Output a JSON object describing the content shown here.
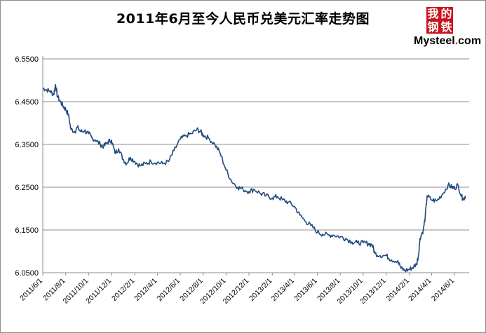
{
  "chart_data": {
    "type": "line",
    "title": "2011年6月至今人民币兑美元汇率走势图",
    "xlabel": "",
    "ylabel": "",
    "ylim": [
      6.05,
      6.55
    ],
    "yticks": [
      "6.5500",
      "6.4500",
      "6.3500",
      "6.2500",
      "6.1500",
      "6.0500"
    ],
    "xticks": [
      "2011/6/1",
      "2011/8/1",
      "2011/10/1",
      "2011/12/1",
      "2012/2/1",
      "2012/4/1",
      "2012/6/1",
      "2012/8/1",
      "2012/10/1",
      "2012/12/1",
      "2013/2/1",
      "2013/4/1",
      "2013/6/1",
      "2013/8/1",
      "2013/10/1",
      "2013/12/1",
      "2014/2/1",
      "2014/4/1",
      "2014/6/1"
    ],
    "grid": "horizontal",
    "line_color": "#1f497d",
    "series": [
      {
        "values": [
          [
            "2011/6/1",
            6.482
          ],
          [
            "2011/6/10",
            6.478
          ],
          [
            "2011/6/20",
            6.475
          ],
          [
            "2011/6/30",
            6.466
          ],
          [
            "2011/7/5",
            6.49
          ],
          [
            "2011/7/10",
            6.462
          ],
          [
            "2011/7/18",
            6.45
          ],
          [
            "2011/7/25",
            6.44
          ],
          [
            "2011/8/1",
            6.432
          ],
          [
            "2011/8/8",
            6.42
          ],
          [
            "2011/8/15",
            6.385
          ],
          [
            "2011/8/25",
            6.38
          ],
          [
            "2011/9/1",
            6.39
          ],
          [
            "2011/9/10",
            6.38
          ],
          [
            "2011/9/20",
            6.382
          ],
          [
            "2011/10/1",
            6.375
          ],
          [
            "2011/10/10",
            6.365
          ],
          [
            "2011/10/20",
            6.36
          ],
          [
            "2011/11/1",
            6.35
          ],
          [
            "2011/11/10",
            6.345
          ],
          [
            "2011/11/20",
            6.355
          ],
          [
            "2011/12/1",
            6.36
          ],
          [
            "2011/12/10",
            6.33
          ],
          [
            "2011/12/20",
            6.34
          ],
          [
            "2012/1/1",
            6.315
          ],
          [
            "2012/1/10",
            6.305
          ],
          [
            "2012/1/20",
            6.32
          ],
          [
            "2012/2/1",
            6.31
          ],
          [
            "2012/2/15",
            6.3
          ],
          [
            "2012/3/1",
            6.305
          ],
          [
            "2012/3/15",
            6.31
          ],
          [
            "2012/4/1",
            6.308
          ],
          [
            "2012/4/15",
            6.305
          ],
          [
            "2012/5/1",
            6.31
          ],
          [
            "2012/5/15",
            6.335
          ],
          [
            "2012/6/1",
            6.362
          ],
          [
            "2012/6/15",
            6.37
          ],
          [
            "2012/7/1",
            6.375
          ],
          [
            "2012/7/15",
            6.385
          ],
          [
            "2012/7/25",
            6.38
          ],
          [
            "2012/8/1",
            6.372
          ],
          [
            "2012/8/15",
            6.365
          ],
          [
            "2012/9/1",
            6.35
          ],
          [
            "2012/9/15",
            6.33
          ],
          [
            "2012/10/1",
            6.29
          ],
          [
            "2012/10/15",
            6.265
          ],
          [
            "2012/11/1",
            6.25
          ],
          [
            "2012/11/15",
            6.245
          ],
          [
            "2012/12/1",
            6.24
          ],
          [
            "2012/12/15",
            6.245
          ],
          [
            "2013/1/1",
            6.235
          ],
          [
            "2013/1/15",
            6.23
          ],
          [
            "2013/2/1",
            6.225
          ],
          [
            "2013/2/15",
            6.228
          ],
          [
            "2013/3/1",
            6.22
          ],
          [
            "2013/3/15",
            6.215
          ],
          [
            "2013/4/1",
            6.205
          ],
          [
            "2013/4/15",
            6.185
          ],
          [
            "2013/5/1",
            6.17
          ],
          [
            "2013/5/15",
            6.16
          ],
          [
            "2013/6/1",
            6.145
          ],
          [
            "2013/6/15",
            6.14
          ],
          [
            "2013/7/1",
            6.138
          ],
          [
            "2013/7/15",
            6.138
          ],
          [
            "2013/8/1",
            6.134
          ],
          [
            "2013/8/15",
            6.13
          ],
          [
            "2013/9/1",
            6.122
          ],
          [
            "2013/9/15",
            6.12
          ],
          [
            "2013/10/1",
            6.12
          ],
          [
            "2013/10/15",
            6.118
          ],
          [
            "2013/10/25",
            6.115
          ],
          [
            "2013/11/1",
            6.095
          ],
          [
            "2013/11/15",
            6.09
          ],
          [
            "2013/12/1",
            6.09
          ],
          [
            "2013/12/15",
            6.08
          ],
          [
            "2014/1/1",
            6.078
          ],
          [
            "2014/1/10",
            6.06
          ],
          [
            "2014/1/20",
            6.055
          ],
          [
            "2014/2/1",
            6.058
          ],
          [
            "2014/2/10",
            6.062
          ],
          [
            "2014/2/20",
            6.07
          ],
          [
            "2014/2/25",
            6.09
          ],
          [
            "2014/3/1",
            6.13
          ],
          [
            "2014/3/10",
            6.15
          ],
          [
            "2014/3/15",
            6.18
          ],
          [
            "2014/3/20",
            6.23
          ],
          [
            "2014/4/1",
            6.22
          ],
          [
            "2014/4/15",
            6.218
          ],
          [
            "2014/5/1",
            6.235
          ],
          [
            "2014/5/15",
            6.255
          ],
          [
            "2014/5/25",
            6.25
          ],
          [
            "2014/6/1",
            6.248
          ],
          [
            "2014/6/10",
            6.255
          ],
          [
            "2014/6/20",
            6.228
          ],
          [
            "2014/6/25",
            6.222
          ],
          [
            "2014/6/30",
            6.23
          ]
        ]
      }
    ]
  },
  "logo": {
    "badge_chars": [
      "我",
      "的",
      "钢",
      "铁"
    ],
    "word_main": "Mysteel",
    "word_dot": ".",
    "word_tld": "com"
  }
}
